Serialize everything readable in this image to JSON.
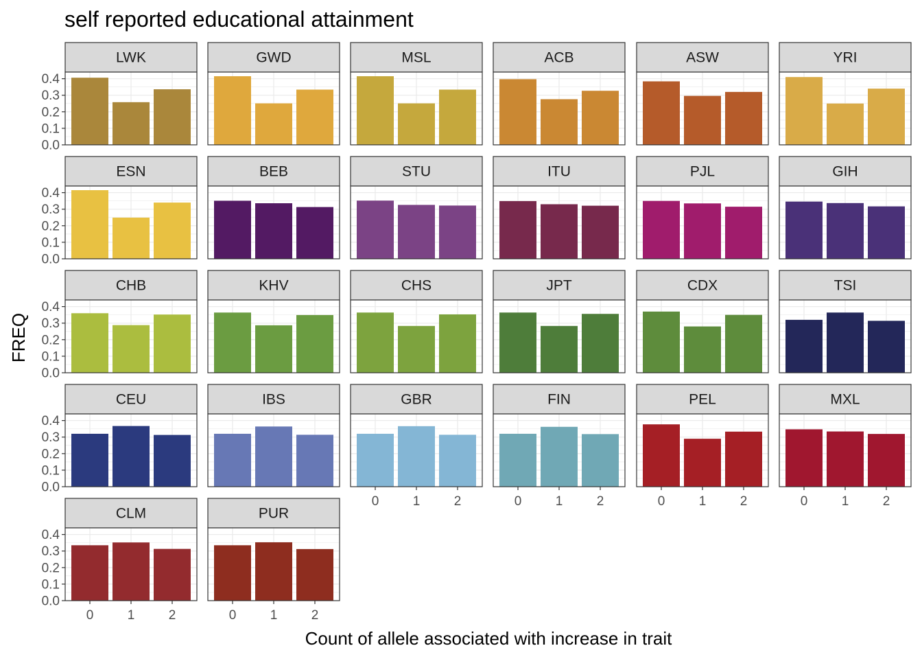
{
  "chart_data": {
    "type": "bar",
    "title": "self reported educational attainment",
    "xlabel": "Count of allele associated with increase in trait",
    "ylabel": "FREQ",
    "categories": [
      "0",
      "1",
      "2"
    ],
    "ylim": [
      0,
      0.44
    ],
    "yticks": [
      "0.0",
      "0.1",
      "0.2",
      "0.3",
      "0.4"
    ],
    "grid": true,
    "facets": [
      {
        "name": "LWK",
        "color": "#AA873B",
        "values": [
          0.406,
          0.258,
          0.336
        ]
      },
      {
        "name": "GWD",
        "color": "#DFA83D",
        "values": [
          0.415,
          0.251,
          0.334
        ]
      },
      {
        "name": "MSL",
        "color": "#C5A83D",
        "values": [
          0.415,
          0.251,
          0.334
        ]
      },
      {
        "name": "ACB",
        "color": "#CA8833",
        "values": [
          0.397,
          0.276,
          0.327
        ]
      },
      {
        "name": "ASW",
        "color": "#B55B2A",
        "values": [
          0.384,
          0.296,
          0.32
        ]
      },
      {
        "name": "YRI",
        "color": "#D9AB48",
        "values": [
          0.41,
          0.25,
          0.34
        ]
      },
      {
        "name": "ESN",
        "color": "#E8C142",
        "values": [
          0.415,
          0.249,
          0.34
        ]
      },
      {
        "name": "BEB",
        "color": "#531A63",
        "values": [
          0.351,
          0.336,
          0.313
        ]
      },
      {
        "name": "STU",
        "color": "#7B4385",
        "values": [
          0.352,
          0.326,
          0.322
        ]
      },
      {
        "name": "ITU",
        "color": "#77294C",
        "values": [
          0.349,
          0.33,
          0.321
        ]
      },
      {
        "name": "PJL",
        "color": "#A01C6C",
        "values": [
          0.35,
          0.335,
          0.315
        ]
      },
      {
        "name": "GIH",
        "color": "#4A3178",
        "values": [
          0.346,
          0.337,
          0.317
        ]
      },
      {
        "name": "CHB",
        "color": "#ABBD3F",
        "values": [
          0.36,
          0.288,
          0.352
        ]
      },
      {
        "name": "KHV",
        "color": "#6B9C41",
        "values": [
          0.364,
          0.287,
          0.349
        ]
      },
      {
        "name": "CHS",
        "color": "#7DA33E",
        "values": [
          0.364,
          0.283,
          0.353
        ]
      },
      {
        "name": "JPT",
        "color": "#4E7D3A",
        "values": [
          0.364,
          0.283,
          0.356
        ]
      },
      {
        "name": "CDX",
        "color": "#5E8C3C",
        "values": [
          0.37,
          0.28,
          0.35
        ]
      },
      {
        "name": "TSI",
        "color": "#232759",
        "values": [
          0.32,
          0.364,
          0.314
        ]
      },
      {
        "name": "CEU",
        "color": "#2B3A7E",
        "values": [
          0.32,
          0.367,
          0.313
        ]
      },
      {
        "name": "IBS",
        "color": "#6778B5",
        "values": [
          0.32,
          0.364,
          0.314
        ]
      },
      {
        "name": "GBR",
        "color": "#84B6D5",
        "values": [
          0.32,
          0.366,
          0.314
        ]
      },
      {
        "name": "FIN",
        "color": "#70A8B5",
        "values": [
          0.32,
          0.362,
          0.318
        ]
      },
      {
        "name": "PEL",
        "color": "#A51F25",
        "values": [
          0.377,
          0.29,
          0.333
        ]
      },
      {
        "name": "MXL",
        "color": "#A0172F",
        "values": [
          0.347,
          0.334,
          0.319
        ]
      },
      {
        "name": "CLM",
        "color": "#932B2E",
        "values": [
          0.335,
          0.352,
          0.313
        ]
      },
      {
        "name": "PUR",
        "color": "#8E2D1F",
        "values": [
          0.335,
          0.353,
          0.312
        ]
      }
    ]
  }
}
